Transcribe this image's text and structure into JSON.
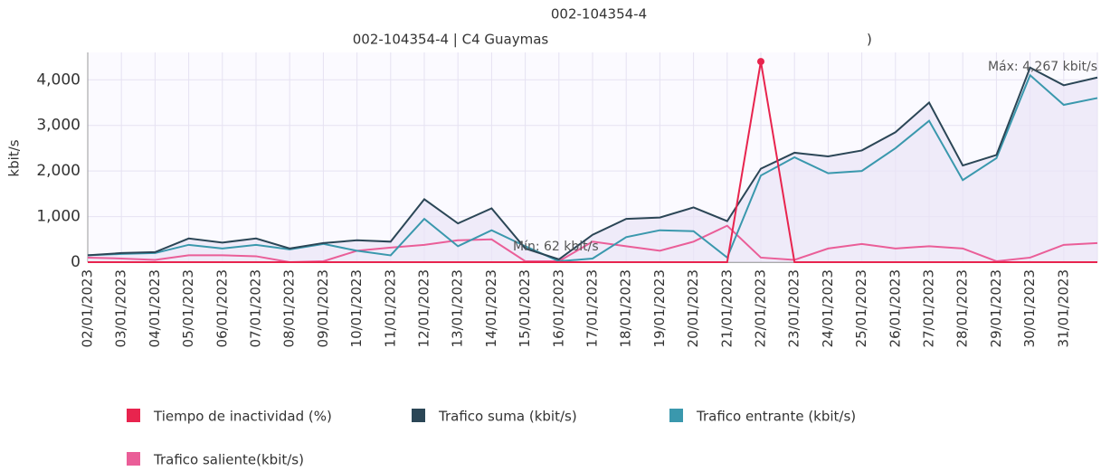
{
  "chart_data": {
    "type": "line",
    "title": "002-104354-4",
    "subtitle": "002-104354-4 | C4 Guaymas",
    "note": ")",
    "y_label": "kbit/s",
    "annotations": [
      "Mín: 62 kbit/s",
      "Máx: 4,267 kbit/s"
    ],
    "categories": [
      "02/01/2023",
      "03/01/2023",
      "04/01/2023",
      "05/01/2023",
      "06/01/2023",
      "07/01/2023",
      "08/01/2023",
      "09/01/2023",
      "10/01/2023",
      "11/01/2023",
      "12/01/2023",
      "13/01/2023",
      "14/01/2023",
      "15/01/2023",
      "16/01/2023",
      "17/01/2023",
      "18/01/2023",
      "19/01/2023",
      "20/01/2023",
      "21/01/2023",
      "22/01/2023",
      "23/01/2023",
      "24/01/2023",
      "25/01/2023",
      "26/01/2023",
      "27/01/2023",
      "28/01/2023",
      "29/01/2023",
      "30/01/2023",
      "31/01/2023",
      null
    ],
    "series": [
      {
        "name": "Tiempo de inactividad (%)",
        "color": "#e8244e",
        "values": [
          0,
          0,
          0,
          0,
          0,
          0,
          0,
          0,
          0,
          0,
          0,
          0,
          0,
          0,
          0,
          0,
          0,
          0,
          0,
          0,
          4400,
          0,
          0,
          0,
          0,
          0,
          0,
          0,
          0,
          0,
          0
        ]
      },
      {
        "name": "Trafico suma (kbit/s)",
        "color": "#2b4656",
        "values": [
          150,
          200,
          220,
          520,
          430,
          520,
          300,
          420,
          480,
          450,
          1380,
          850,
          1180,
          300,
          62,
          600,
          950,
          980,
          1200,
          900,
          2050,
          2400,
          2320,
          2450,
          2850,
          3500,
          2120,
          2350,
          4267,
          3880,
          4050
        ]
      },
      {
        "name": "Trafico entrante (kbit/s)",
        "color": "#3a98ad",
        "values": [
          150,
          180,
          200,
          380,
          300,
          380,
          280,
          400,
          250,
          150,
          950,
          350,
          700,
          350,
          20,
          80,
          550,
          700,
          680,
          100,
          1900,
          2300,
          1950,
          2000,
          2500,
          3100,
          1800,
          2280,
          4100,
          3450,
          3600
        ]
      },
      {
        "name": "Trafico saliente(kbit/s)",
        "color": "#ea5e98",
        "values": [
          100,
          80,
          50,
          150,
          150,
          130,
          0,
          20,
          250,
          320,
          380,
          480,
          500,
          20,
          20,
          450,
          350,
          250,
          450,
          800,
          100,
          50,
          300,
          400,
          300,
          350,
          300,
          20,
          100,
          380,
          420
        ]
      }
    ],
    "ylim": [
      0,
      4600
    ],
    "yticks": [
      0,
      {
        "value": 1000,
        "label": "1,000"
      },
      {
        "value": 2000,
        "label": "2,000"
      },
      {
        "value": 3000,
        "label": "3,000"
      },
      {
        "value": 4000,
        "label": "4,000"
      }
    ],
    "grid": true
  }
}
